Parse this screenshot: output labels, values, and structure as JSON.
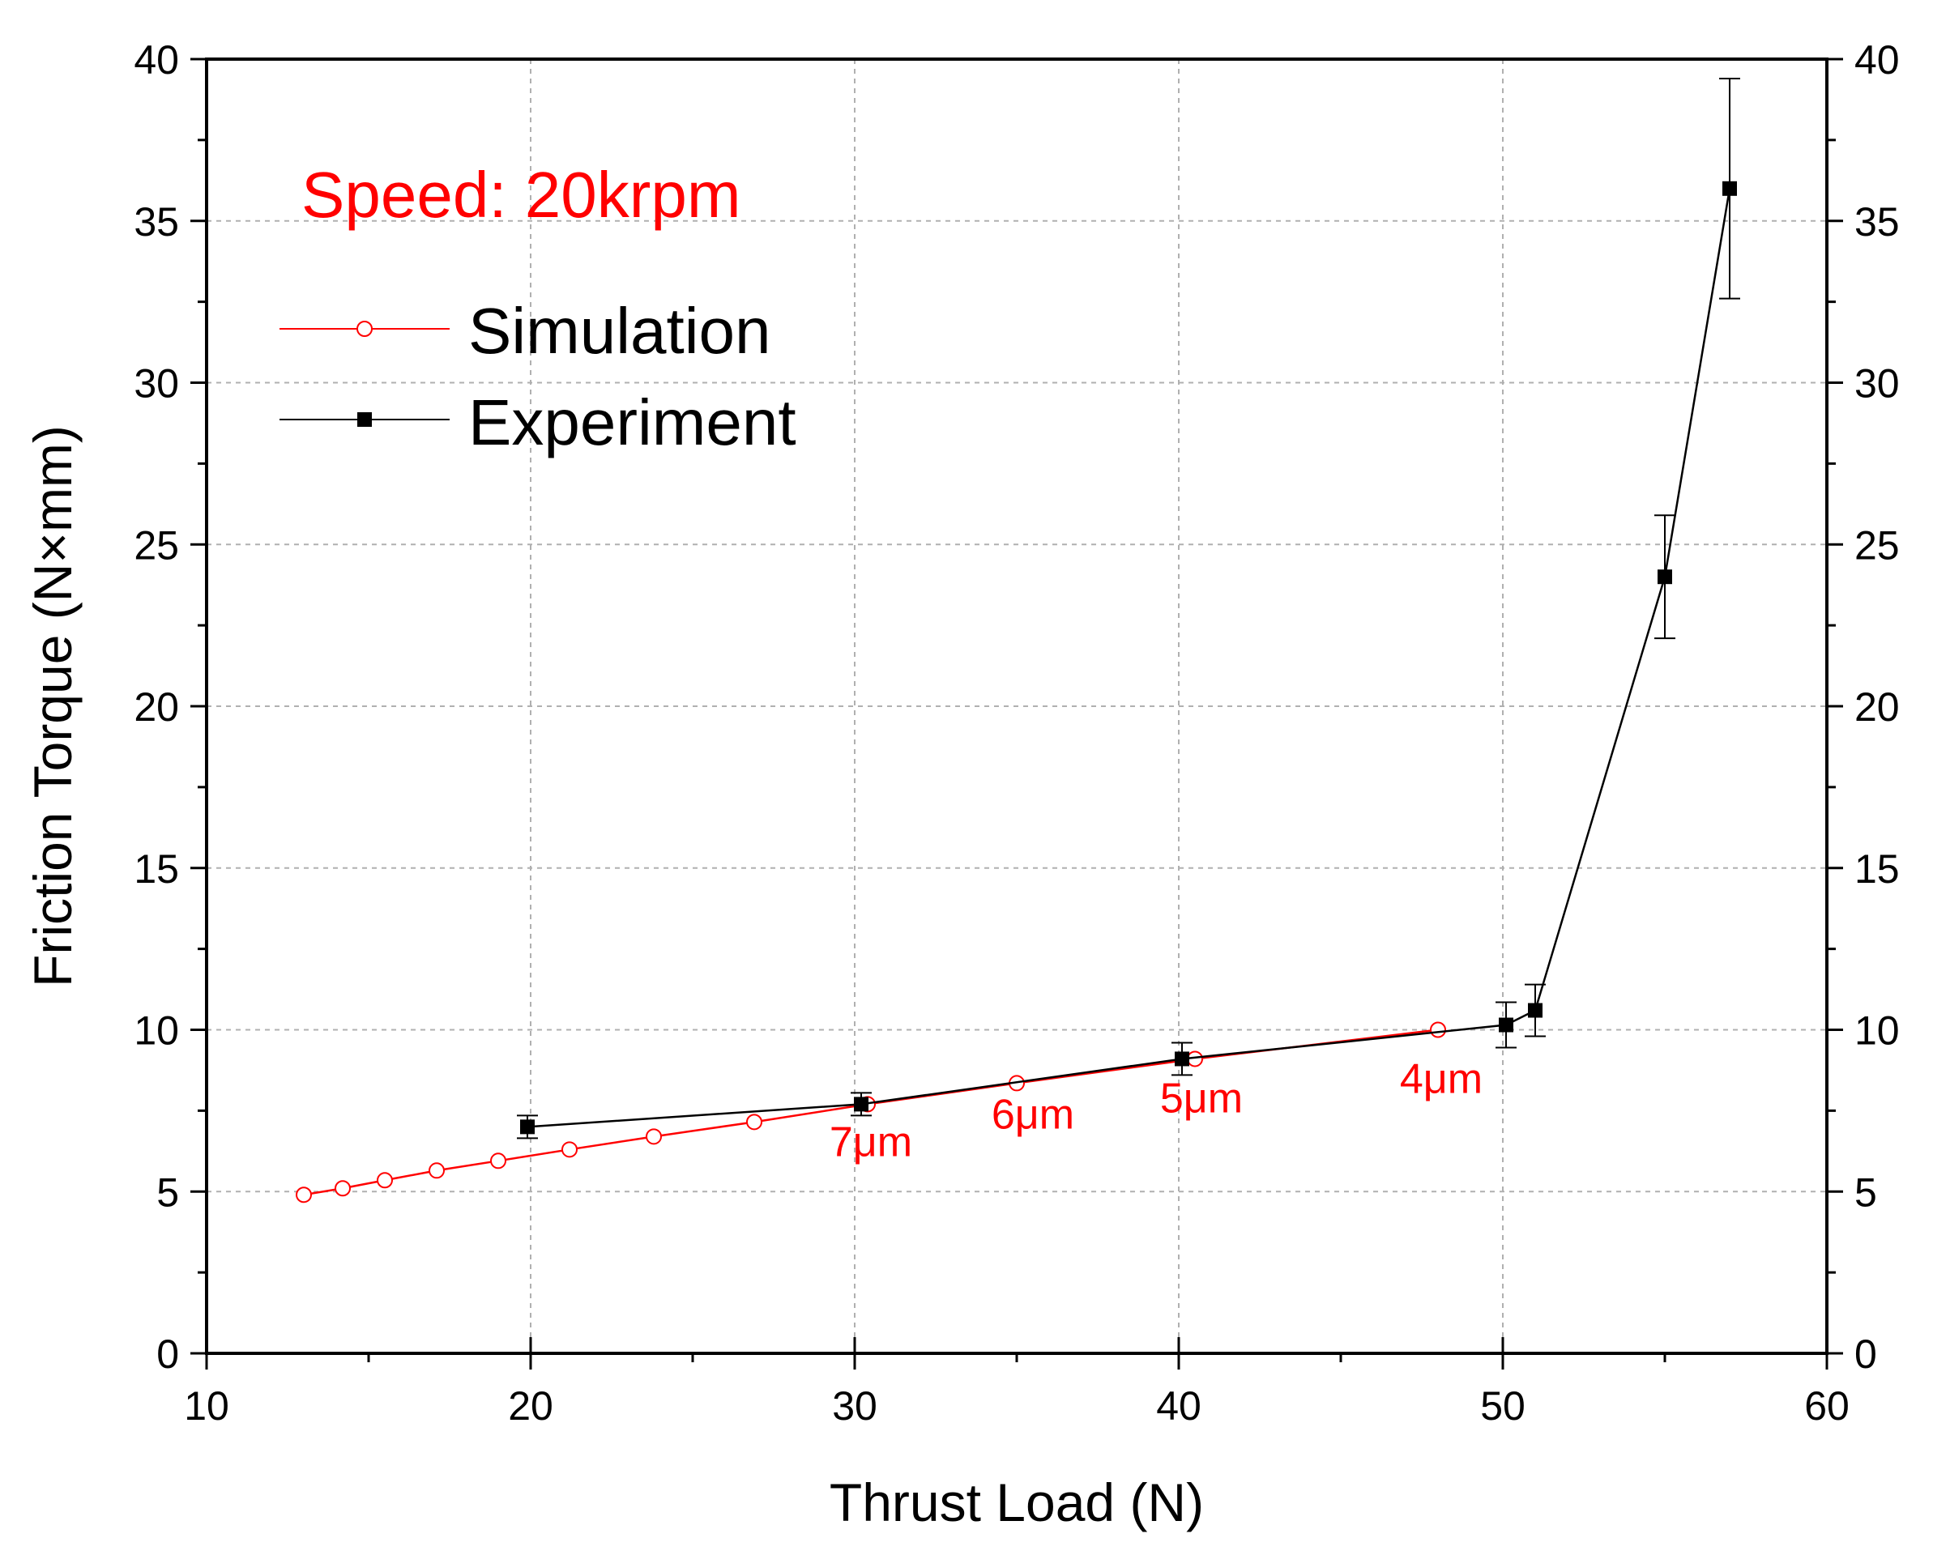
{
  "chart_data": {
    "type": "line",
    "xlabel": "Thrust Load (N)",
    "ylabel": "Friction Torque (N×mm)",
    "xlim": [
      10,
      60
    ],
    "ylim": [
      0,
      40
    ],
    "x_ticks": [
      10,
      20,
      30,
      40,
      50,
      60
    ],
    "y_ticks": [
      0,
      5,
      10,
      15,
      20,
      25,
      30,
      35,
      40
    ],
    "x_tick_labels": [
      "10",
      "20",
      "30",
      "40",
      "50",
      "60"
    ],
    "y_tick_labels": [
      "0",
      "5",
      "10",
      "15",
      "20",
      "25",
      "30",
      "35",
      "40"
    ],
    "right_y_tick_labels": [
      "0",
      "5",
      "10",
      "15",
      "20",
      "25",
      "30",
      "35",
      "40"
    ],
    "grid": true,
    "speed_label": "Speed: 20krpm",
    "legend_position": "top-left",
    "colors": {
      "simulation": "#ff0000",
      "experiment": "#000000",
      "grid": "#b0b0b0"
    },
    "series": [
      {
        "name": "Simulation",
        "marker": "open-circle",
        "x": [
          13,
          14.2,
          15.5,
          17.1,
          19,
          21.2,
          23.8,
          26.9,
          30.4,
          35,
          40.5,
          48
        ],
        "y": [
          4.9,
          5.1,
          5.35,
          5.65,
          5.95,
          6.3,
          6.7,
          7.15,
          7.7,
          8.35,
          9.1,
          10.0
        ]
      },
      {
        "name": "Experiment",
        "marker": "filled-square",
        "x": [
          19.9,
          30.2,
          40.1,
          50.1,
          51,
          55,
          57
        ],
        "y": [
          7.0,
          7.7,
          9.1,
          10.15,
          10.6,
          24.0,
          36.0
        ],
        "error": [
          0.35,
          0.35,
          0.5,
          0.7,
          0.8,
          1.9,
          3.4
        ]
      }
    ],
    "annotations": [
      {
        "text": "7μm",
        "x": 30.5,
        "y": 6.1
      },
      {
        "text": "6μm",
        "x": 35.5,
        "y": 6.95
      },
      {
        "text": "5μm",
        "x": 40.7,
        "y": 7.45
      },
      {
        "text": "4μm",
        "x": 48.1,
        "y": 8.05
      }
    ]
  }
}
